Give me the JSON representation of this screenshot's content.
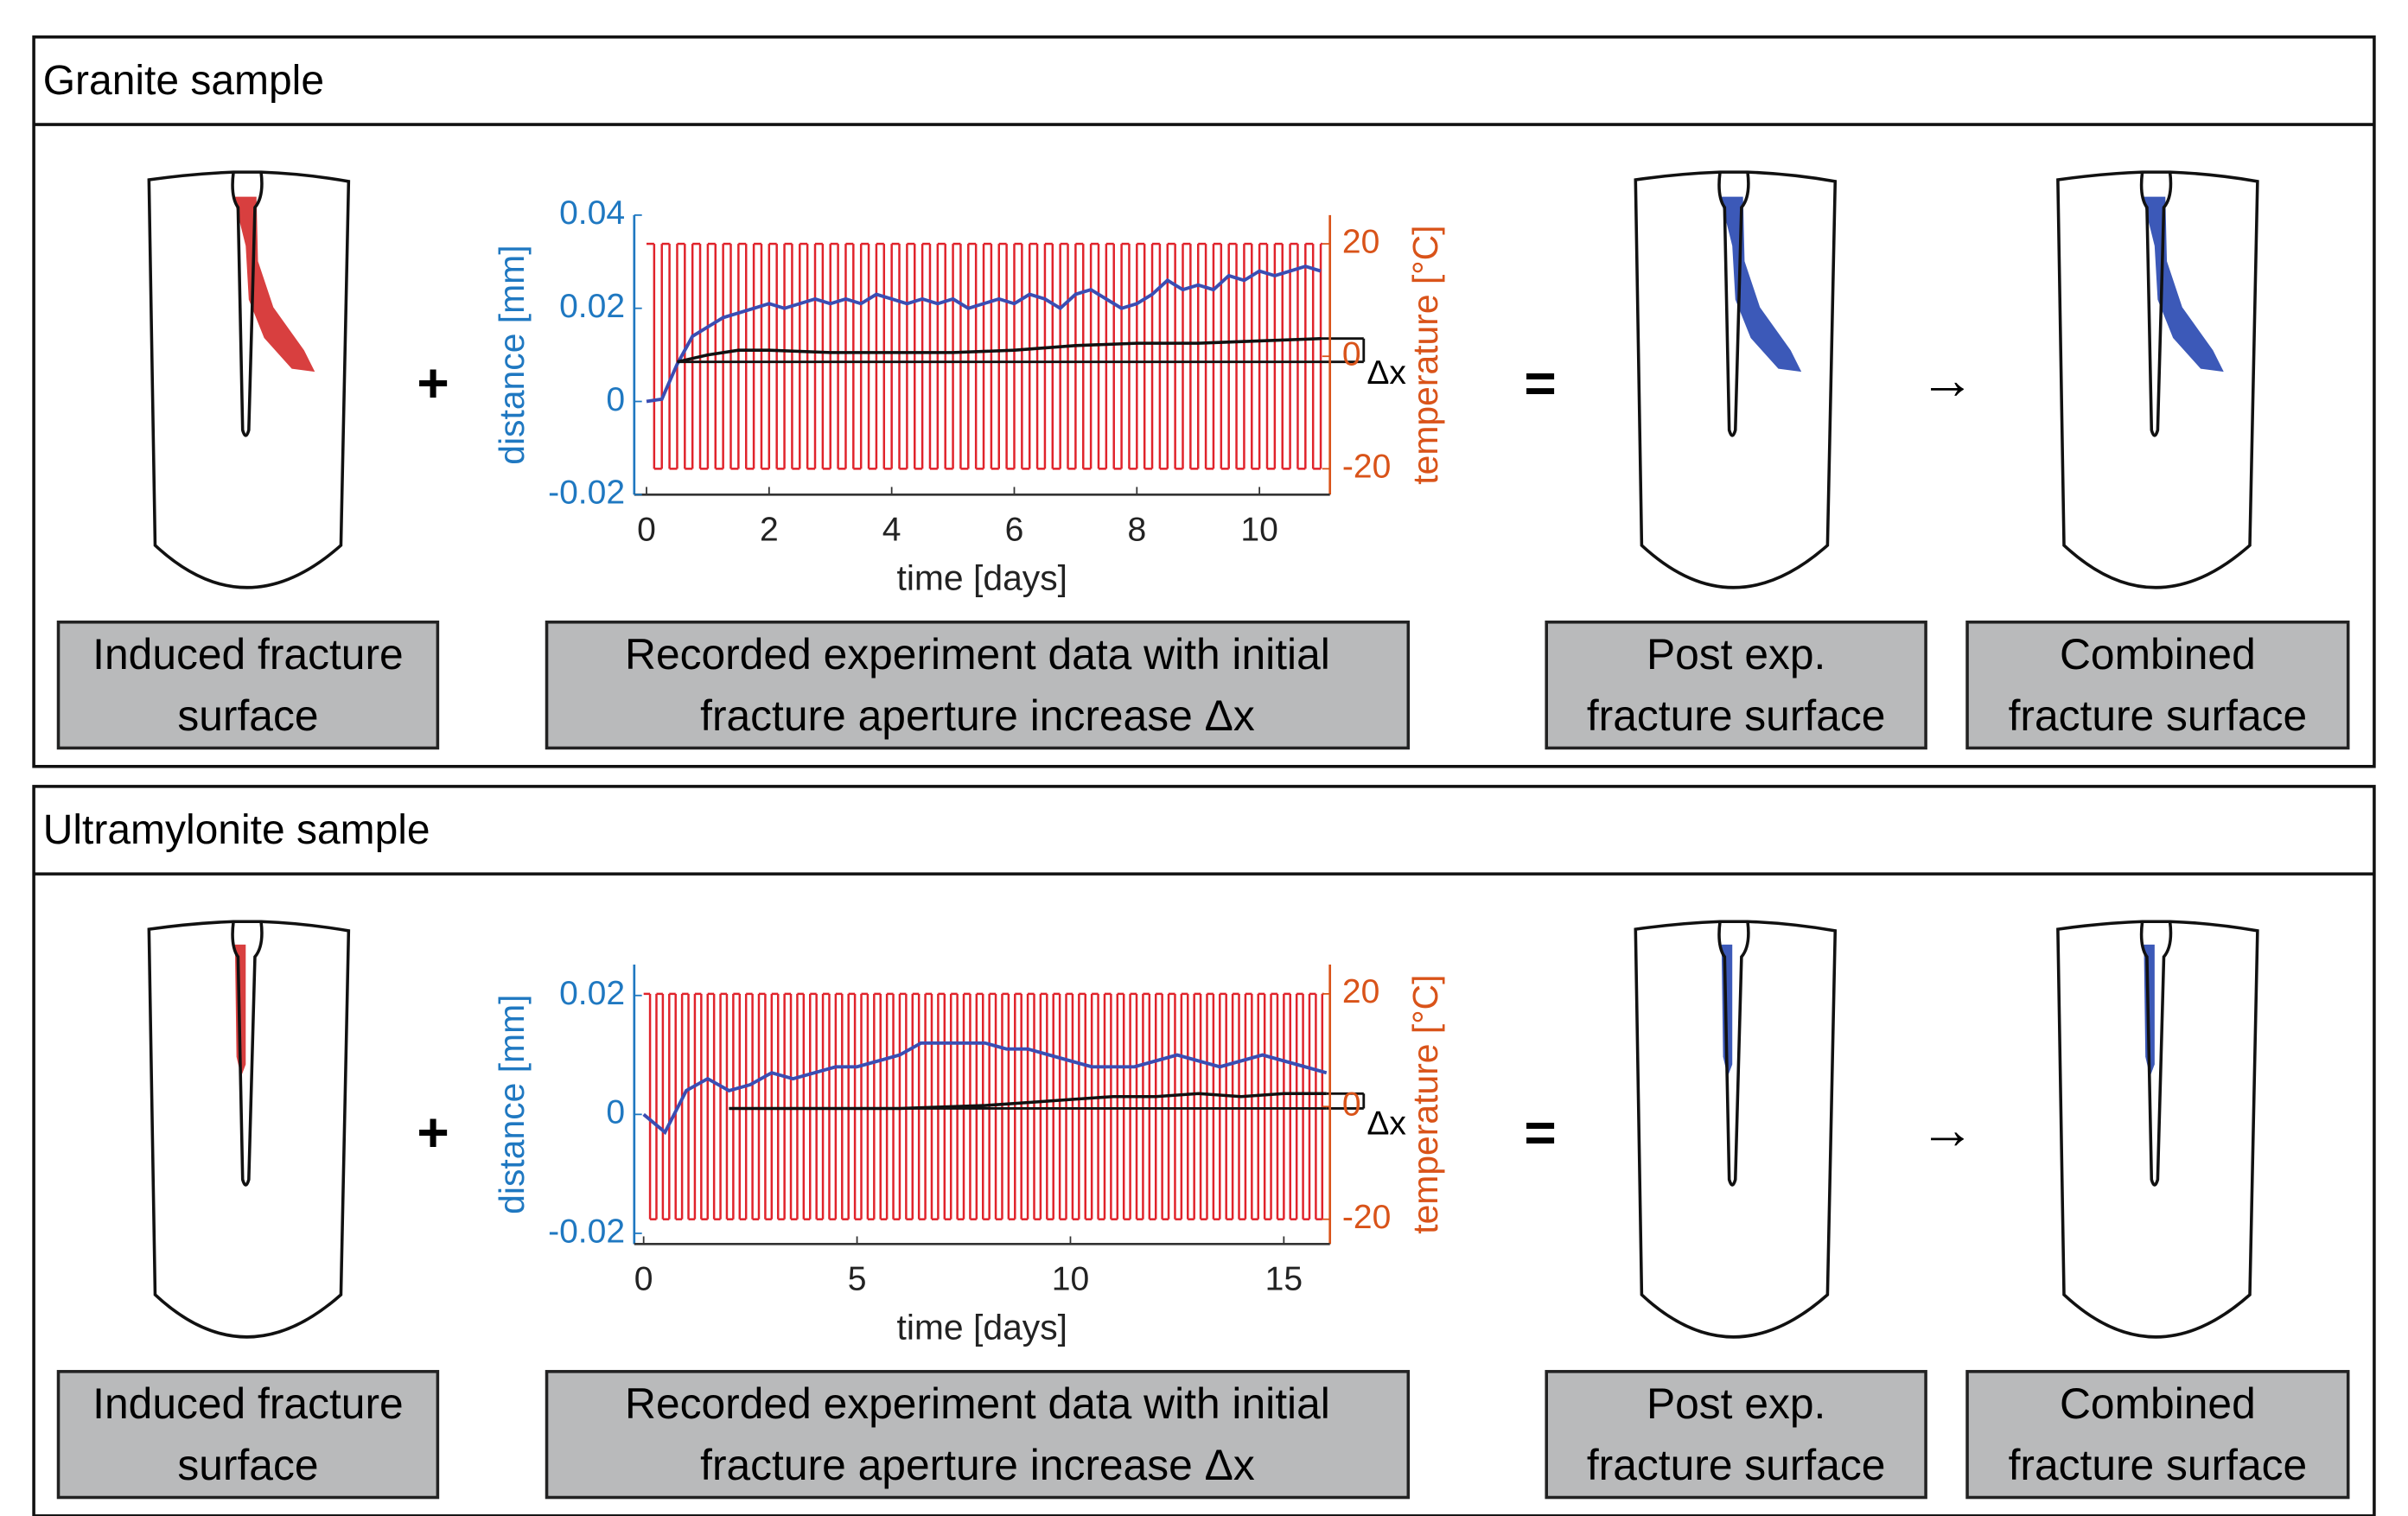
{
  "panels": [
    {
      "title": "Granite sample",
      "operators": [
        "+",
        "=",
        "→"
      ],
      "boxes": [
        [
          "Induced fracture",
          "surface"
        ],
        [
          "Recorded experiment data with initial",
          "fracture aperture increase Δx"
        ],
        [
          "Post exp.",
          "fracture surface"
        ],
        [
          "Combined",
          "fracture surface"
        ]
      ],
      "chart": {
        "type": "line",
        "xlabel": "time [days]",
        "ylabel": "distance [mm]",
        "y2label": "temperature [°C]",
        "delta_label": "Δx",
        "xlim": [
          -0.2,
          11.15
        ],
        "ylim": [
          -0.02,
          0.04
        ],
        "y2lim": [
          -24.6,
          25.1
        ],
        "xticks": [
          0,
          2,
          4,
          6,
          8,
          10
        ],
        "yticks": [
          -0.02,
          0,
          0.02,
          0.04
        ],
        "y2ticks": [
          -20,
          0,
          20
        ],
        "temperature": {
          "axis": "y2",
          "color": "#e0232b",
          "x": [
            0,
            0.125,
            0.25,
            0.375,
            0.5,
            0.625,
            0.75,
            0.875,
            1,
            1.125,
            1.25,
            1.375,
            1.5,
            1.625,
            1.75,
            1.875,
            2,
            2.125,
            2.25,
            2.375,
            2.5,
            2.625,
            2.75,
            2.875,
            3,
            3.125,
            3.25,
            3.375,
            3.5,
            3.625,
            3.75,
            3.875,
            4,
            4.125,
            4.25,
            4.375,
            4.5,
            4.625,
            4.75,
            4.875,
            5,
            5.125,
            5.25,
            5.375,
            5.5,
            5.625,
            5.75,
            5.875,
            6,
            6.125,
            6.25,
            6.375,
            6.5,
            6.625,
            6.75,
            6.875,
            7,
            7.125,
            7.25,
            7.375,
            7.5,
            7.625,
            7.75,
            7.875,
            8,
            8.125,
            8.25,
            8.375,
            8.5,
            8.625,
            8.75,
            8.875,
            9,
            9.125,
            9.25,
            9.375,
            9.5,
            9.625,
            9.75,
            9.875,
            10,
            10.125,
            10.25,
            10.375,
            10.5,
            10.625,
            10.75,
            10.875,
            11
          ],
          "values": [
            20,
            -20,
            20,
            -20,
            20,
            -20,
            20,
            -20,
            20,
            -20,
            20,
            -20,
            20,
            -20,
            20,
            -20,
            20,
            -20,
            20,
            -20,
            20,
            -20,
            20,
            -20,
            20,
            -20,
            20,
            -20,
            20,
            -20,
            20,
            -20,
            20,
            -20,
            20,
            -20,
            20,
            -20,
            20,
            -20,
            20,
            -20,
            20,
            -20,
            20,
            -20,
            20,
            -20,
            20,
            -20,
            20,
            -20,
            20,
            -20,
            20,
            -20,
            20,
            -20,
            20,
            -20,
            20,
            -20,
            20,
            -20,
            20,
            -20,
            20,
            -20,
            20,
            -20,
            20,
            -20,
            20,
            -20,
            20,
            -20,
            20,
            -20,
            20,
            -20,
            20,
            -20,
            20,
            -20,
            20,
            -20,
            20,
            -20,
            20
          ]
        },
        "distance": {
          "color": "#3a4db3",
          "x": [
            0,
            0.25,
            0.5,
            0.75,
            1,
            1.25,
            1.5,
            1.75,
            2,
            2.25,
            2.5,
            2.75,
            3,
            3.25,
            3.5,
            3.75,
            4,
            4.25,
            4.5,
            4.75,
            5,
            5.25,
            5.5,
            5.75,
            6,
            6.25,
            6.5,
            6.75,
            7,
            7.25,
            7.5,
            7.75,
            8,
            8.25,
            8.5,
            8.75,
            9,
            9.25,
            9.5,
            9.75,
            10,
            10.25,
            10.5,
            10.75,
            11
          ],
          "values": [
            0,
            0.0005,
            0.008,
            0.014,
            0.016,
            0.018,
            0.019,
            0.02,
            0.021,
            0.02,
            0.021,
            0.022,
            0.021,
            0.022,
            0.021,
            0.023,
            0.022,
            0.021,
            0.022,
            0.021,
            0.022,
            0.02,
            0.021,
            0.022,
            0.021,
            0.023,
            0.022,
            0.02,
            0.023,
            0.024,
            0.022,
            0.02,
            0.021,
            0.023,
            0.026,
            0.024,
            0.025,
            0.024,
            0.027,
            0.026,
            0.028,
            0.027,
            0.028,
            0.029,
            0.028
          ]
        },
        "trend": {
          "color": "#111111",
          "x": [
            0.5,
            1,
            1.5,
            2,
            3,
            4,
            5,
            6,
            7,
            8,
            9,
            10,
            11
          ],
          "values": [
            0.0085,
            0.01,
            0.011,
            0.011,
            0.0105,
            0.0105,
            0.0105,
            0.011,
            0.012,
            0.0125,
            0.0125,
            0.013,
            0.0135
          ]
        },
        "baseline": {
          "color": "#111111",
          "x": [
            0.5,
            11
          ],
          "values": [
            0.0085,
            0.0085
          ]
        }
      }
    },
    {
      "title": "Ultramylonite sample",
      "operators": [
        "+",
        "=",
        "→"
      ],
      "boxes": [
        [
          "Induced fracture",
          "surface"
        ],
        [
          "Recorded experiment data with initial",
          "fracture aperture increase Δx"
        ],
        [
          "Post exp.",
          "fracture surface"
        ],
        [
          "Combined",
          "fracture surface"
        ]
      ],
      "chart": {
        "type": "line",
        "xlabel": "time [days]",
        "ylabel": "distance [mm]",
        "y2label": "temperature [°C]",
        "delta_label": "Δx",
        "xlim": [
          -0.22,
          16.08
        ],
        "ylim": [
          -0.0218,
          0.0252
        ],
        "y2lim": [
          -24.4,
          25.2
        ],
        "xticks": [
          0,
          5,
          10,
          15
        ],
        "yticks": [
          -0.02,
          0,
          0.02
        ],
        "y2ticks": [
          -20,
          0,
          20
        ],
        "temperature": {
          "axis": "y2",
          "color": "#e0232b",
          "x": [
            0,
            0.15,
            0.3,
            0.45,
            0.6,
            0.75,
            0.9,
            1.05,
            1.2,
            1.35,
            1.5,
            1.65,
            1.8,
            1.95,
            2.1,
            2.25,
            2.4,
            2.55,
            2.7,
            2.85,
            3,
            3.15,
            3.3,
            3.45,
            3.6,
            3.75,
            3.9,
            4.05,
            4.2,
            4.35,
            4.5,
            4.65,
            4.8,
            4.95,
            5.1,
            5.25,
            5.4,
            5.55,
            5.7,
            5.85,
            6,
            6.15,
            6.3,
            6.45,
            6.6,
            6.75,
            6.9,
            7.05,
            7.2,
            7.35,
            7.5,
            7.65,
            7.8,
            7.95,
            8.1,
            8.25,
            8.4,
            8.55,
            8.7,
            8.85,
            9,
            9.15,
            9.3,
            9.45,
            9.6,
            9.75,
            9.9,
            10.05,
            10.2,
            10.35,
            10.5,
            10.65,
            10.8,
            10.95,
            11.1,
            11.25,
            11.4,
            11.55,
            11.7,
            11.85,
            12,
            12.15,
            12.3,
            12.45,
            12.6,
            12.75,
            12.9,
            13.05,
            13.2,
            13.35,
            13.5,
            13.65,
            13.8,
            13.95,
            14.1,
            14.25,
            14.4,
            14.55,
            14.7,
            14.85,
            15,
            15.15,
            15.3,
            15.45,
            15.6,
            15.75,
            15.9
          ],
          "values": [
            20,
            -20,
            20,
            -20,
            20,
            -20,
            20,
            -20,
            20,
            -20,
            20,
            -20,
            20,
            -20,
            20,
            -20,
            20,
            -20,
            20,
            -20,
            20,
            -20,
            20,
            -20,
            20,
            -20,
            20,
            -20,
            20,
            -20,
            20,
            -20,
            20,
            -20,
            20,
            -20,
            20,
            -20,
            20,
            -20,
            20,
            -20,
            20,
            -20,
            20,
            -20,
            20,
            -20,
            20,
            -20,
            20,
            -20,
            20,
            -20,
            20,
            -20,
            20,
            -20,
            20,
            -20,
            20,
            -20,
            20,
            -20,
            20,
            -20,
            20,
            -20,
            20,
            -20,
            20,
            -20,
            20,
            -20,
            20,
            -20,
            20,
            -20,
            20,
            -20,
            20,
            -20,
            20,
            -20,
            20,
            -20,
            20,
            -20,
            20,
            -20,
            20,
            -20,
            20,
            -20,
            20,
            -20,
            20,
            -20,
            20,
            -20,
            20,
            -20,
            20,
            -20,
            20,
            -20,
            20
          ]
        },
        "distance": {
          "color": "#3a4db3",
          "x": [
            0,
            0.5,
            1,
            1.5,
            2,
            2.5,
            3,
            3.5,
            4,
            4.5,
            5,
            5.5,
            6,
            6.5,
            7,
            7.5,
            8,
            8.5,
            9,
            9.5,
            10,
            10.5,
            11,
            11.5,
            12,
            12.5,
            13,
            13.5,
            14,
            14.5,
            15,
            15.5,
            16
          ],
          "values": [
            0,
            -0.003,
            0.004,
            0.006,
            0.004,
            0.005,
            0.007,
            0.006,
            0.007,
            0.008,
            0.008,
            0.009,
            0.01,
            0.012,
            0.012,
            0.012,
            0.012,
            0.011,
            0.011,
            0.01,
            0.009,
            0.008,
            0.008,
            0.008,
            0.009,
            0.01,
            0.009,
            0.008,
            0.009,
            0.01,
            0.009,
            0.008,
            0.007
          ]
        },
        "trend": {
          "color": "#111111",
          "x": [
            2,
            4,
            6,
            8,
            9,
            10,
            11,
            12,
            13,
            14,
            15,
            16
          ],
          "values": [
            0.001,
            0.001,
            0.001,
            0.0015,
            0.002,
            0.0025,
            0.003,
            0.003,
            0.0035,
            0.003,
            0.0035,
            0.0035
          ]
        },
        "baseline": {
          "color": "#111111",
          "x": [
            2,
            16
          ],
          "values": [
            0.001,
            0.001
          ]
        }
      }
    }
  ]
}
